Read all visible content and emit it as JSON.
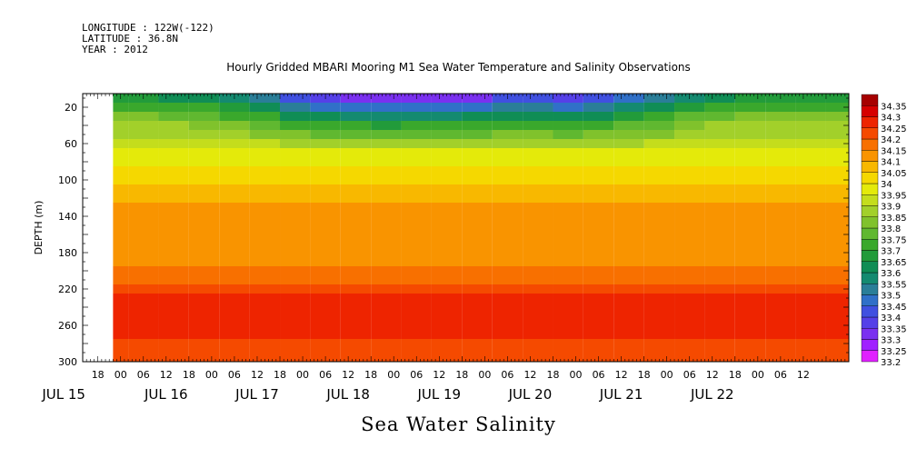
{
  "header": {
    "longitude": "LONGITUDE : 122W(-122)",
    "latitude": "LATITUDE : 36.8N",
    "year": "YEAR : 2012"
  },
  "chart_data": {
    "type": "heatmap",
    "title": "Hourly Gridded MBARI Mooring M1 Sea Water Temperature and Salinity Observations",
    "variable": "Sea Water Salinity",
    "ylabel": "DEPTH (m)",
    "ylim": [
      300,
      5
    ],
    "y_ticks": [
      20,
      60,
      100,
      140,
      180,
      220,
      260,
      300
    ],
    "x_range_hours": [
      -10,
      192
    ],
    "x_hour_ticks": [
      {
        "h": -6,
        "label": "18"
      },
      {
        "h": 0,
        "label": "00"
      },
      {
        "h": 6,
        "label": "06"
      },
      {
        "h": 12,
        "label": "12"
      },
      {
        "h": 18,
        "label": "18"
      },
      {
        "h": 24,
        "label": "00"
      },
      {
        "h": 30,
        "label": "06"
      },
      {
        "h": 36,
        "label": "12"
      },
      {
        "h": 42,
        "label": "18"
      },
      {
        "h": 48,
        "label": "00"
      },
      {
        "h": 54,
        "label": "06"
      },
      {
        "h": 60,
        "label": "12"
      },
      {
        "h": 66,
        "label": "18"
      },
      {
        "h": 72,
        "label": "00"
      },
      {
        "h": 78,
        "label": "06"
      },
      {
        "h": 84,
        "label": "12"
      },
      {
        "h": 90,
        "label": "18"
      },
      {
        "h": 96,
        "label": "00"
      },
      {
        "h": 102,
        "label": "06"
      },
      {
        "h": 108,
        "label": "12"
      },
      {
        "h": 114,
        "label": "18"
      },
      {
        "h": 120,
        "label": "00"
      },
      {
        "h": 126,
        "label": "06"
      },
      {
        "h": 132,
        "label": "12"
      },
      {
        "h": 138,
        "label": "18"
      },
      {
        "h": 144,
        "label": "00"
      },
      {
        "h": 150,
        "label": "06"
      },
      {
        "h": 156,
        "label": "12"
      },
      {
        "h": 162,
        "label": "18"
      },
      {
        "h": 168,
        "label": "00"
      },
      {
        "h": 174,
        "label": "06"
      },
      {
        "h": 180,
        "label": "12"
      }
    ],
    "x_day_labels": [
      {
        "h": -15,
        "label": "JUL 15"
      },
      {
        "h": 12,
        "label": "JUL 16"
      },
      {
        "h": 36,
        "label": "JUL 17"
      },
      {
        "h": 60,
        "label": "JUL 18"
      },
      {
        "h": 84,
        "label": "JUL 19"
      },
      {
        "h": 108,
        "label": "JUL 20"
      },
      {
        "h": 132,
        "label": "JUL 21"
      },
      {
        "h": 156,
        "label": "JUL 22"
      }
    ],
    "data_start_hour": -2,
    "levels": [
      33.2,
      33.25,
      33.3,
      33.35,
      33.4,
      33.45,
      33.5,
      33.55,
      33.6,
      33.65,
      33.7,
      33.75,
      33.8,
      33.85,
      33.9,
      33.95,
      34,
      34.05,
      34.1,
      34.15,
      34.2,
      34.25,
      34.3,
      34.35
    ],
    "level_labels": [
      "33.2",
      "33.25",
      "33.3",
      "33.35",
      "33.4",
      "33.45",
      "33.5",
      "33.55",
      "33.6",
      "33.65",
      "33.7",
      "33.75",
      "33.8",
      "33.85",
      "33.9",
      "33.95",
      "34",
      "34.05",
      "34.1",
      "34.15",
      "34.2",
      "34.25",
      "34.3",
      "34.35"
    ],
    "level_colors": [
      "#e020ff",
      "#a020ff",
      "#7a30f0",
      "#5540e8",
      "#4050e0",
      "#3070c8",
      "#2a7e98",
      "#148a70",
      "#108d55",
      "#229b3a",
      "#3aa82c",
      "#60b830",
      "#80c22c",
      "#a2d02a",
      "#c4dd1c",
      "#e4ea0a",
      "#f5d800",
      "#f8b800",
      "#f99400",
      "#f87000",
      "#f54a00",
      "#ee2400",
      "#d60000",
      "#a60000"
    ],
    "depths": [
      10,
      20,
      30,
      40,
      50,
      60,
      70,
      80,
      90,
      100,
      110,
      120,
      130,
      140,
      150,
      160,
      170,
      180,
      190,
      200,
      210,
      220,
      230,
      240,
      250,
      260,
      270,
      280,
      290,
      300
    ],
    "times_hours": [
      -2,
      6,
      14,
      22,
      30,
      38,
      46,
      54,
      62,
      70,
      78,
      86,
      94,
      102,
      110,
      118,
      126,
      134,
      142,
      150,
      158,
      166,
      174,
      182,
      190
    ],
    "salinity_profile_mean": [
      33.62,
      33.7,
      33.78,
      33.84,
      33.88,
      33.92,
      33.95,
      33.98,
      34.0,
      34.02,
      34.05,
      34.08,
      34.1,
      34.12,
      34.12,
      34.12,
      34.12,
      34.12,
      34.13,
      34.15,
      34.18,
      34.22,
      34.25,
      34.27,
      34.28,
      34.28,
      34.26,
      34.24,
      34.22,
      34.21
    ],
    "surface_anomaly_by_time": [
      0.05,
      0.03,
      0.02,
      0.0,
      -0.05,
      -0.12,
      -0.2,
      -0.25,
      -0.28,
      -0.3,
      -0.28,
      -0.28,
      -0.27,
      -0.22,
      -0.2,
      -0.25,
      -0.2,
      -0.15,
      -0.1,
      -0.02,
      0.02,
      0.04,
      0.05,
      0.04,
      0.04
    ]
  },
  "colorbar_title": ""
}
